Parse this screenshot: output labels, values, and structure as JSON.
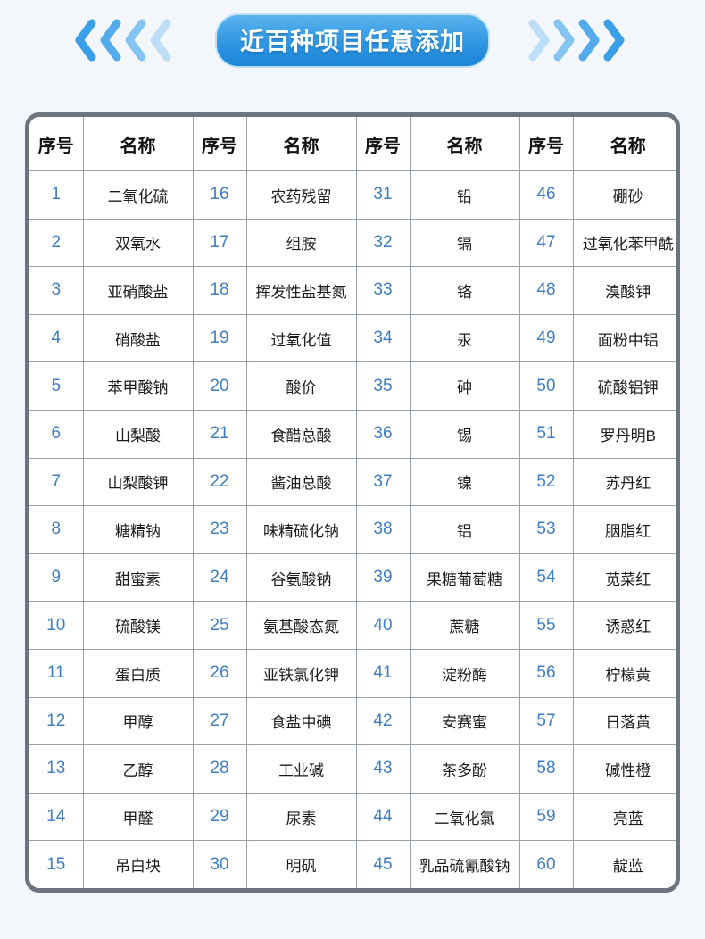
{
  "header": {
    "title": "近百种项目任意添加",
    "left_icon": "chevrons-left-icon",
    "right_icon": "chevrons-right-icon"
  },
  "colors": {
    "page_background": "#f3f7fc",
    "badge_gradient_top": "#5ab3ec",
    "badge_gradient_bottom": "#1a84d7",
    "badge_border": "#bfe0f7",
    "table_outer_border": "#6d7480",
    "grid_line": "#9aa1ab",
    "number_blue": "#3e7dc4",
    "text_dark": "#1c1c1e",
    "chevron_shades_outer_to_inner": [
      "#3b9ee8",
      "#53abec",
      "#86c4f2",
      "#bcdef8"
    ]
  },
  "table": {
    "column_headers": [
      "序号",
      "名称",
      "序号",
      "名称",
      "序号",
      "名称",
      "序号",
      "名称"
    ],
    "groups": [
      {
        "items": [
          {
            "no": "1",
            "name": "二氧化硫"
          },
          {
            "no": "2",
            "name": "双氧水"
          },
          {
            "no": "3",
            "name": "亚硝酸盐"
          },
          {
            "no": "4",
            "name": "硝酸盐"
          },
          {
            "no": "5",
            "name": "苯甲酸钠"
          },
          {
            "no": "6",
            "name": "山梨酸"
          },
          {
            "no": "7",
            "name": "山梨酸钾"
          },
          {
            "no": "8",
            "name": "糖精钠"
          },
          {
            "no": "9",
            "name": "甜蜜素"
          },
          {
            "no": "10",
            "name": "硫酸镁"
          },
          {
            "no": "11",
            "name": "蛋白质"
          },
          {
            "no": "12",
            "name": "甲醇"
          },
          {
            "no": "13",
            "name": "乙醇"
          },
          {
            "no": "14",
            "name": "甲醛"
          },
          {
            "no": "15",
            "name": "吊白块"
          }
        ]
      },
      {
        "items": [
          {
            "no": "16",
            "name": "农药残留"
          },
          {
            "no": "17",
            "name": "组胺"
          },
          {
            "no": "18",
            "name": "挥发性盐基氮"
          },
          {
            "no": "19",
            "name": "过氧化值"
          },
          {
            "no": "20",
            "name": "酸价"
          },
          {
            "no": "21",
            "name": "食醋总酸"
          },
          {
            "no": "22",
            "name": "酱油总酸"
          },
          {
            "no": "23",
            "name": "味精硫化钠"
          },
          {
            "no": "24",
            "name": "谷氨酸钠"
          },
          {
            "no": "25",
            "name": "氨基酸态氮"
          },
          {
            "no": "26",
            "name": "亚铁氯化钾"
          },
          {
            "no": "27",
            "name": "食盐中碘"
          },
          {
            "no": "28",
            "name": "工业碱"
          },
          {
            "no": "29",
            "name": "尿素"
          },
          {
            "no": "30",
            "name": "明矾"
          }
        ]
      },
      {
        "items": [
          {
            "no": "31",
            "name": "铅"
          },
          {
            "no": "32",
            "name": "镉"
          },
          {
            "no": "33",
            "name": "铬"
          },
          {
            "no": "34",
            "name": "汞"
          },
          {
            "no": "35",
            "name": "砷"
          },
          {
            "no": "36",
            "name": "锡"
          },
          {
            "no": "37",
            "name": "镍"
          },
          {
            "no": "38",
            "name": "铝"
          },
          {
            "no": "39",
            "name": "果糖葡萄糖"
          },
          {
            "no": "40",
            "name": "蔗糖"
          },
          {
            "no": "41",
            "name": "淀粉酶"
          },
          {
            "no": "42",
            "name": "安赛蜜"
          },
          {
            "no": "43",
            "name": "茶多酚"
          },
          {
            "no": "44",
            "name": "二氧化氯"
          },
          {
            "no": "45",
            "name": "乳品硫氰酸钠"
          }
        ]
      },
      {
        "items": [
          {
            "no": "46",
            "name": "硼砂"
          },
          {
            "no": "47",
            "name": "过氧化苯甲酰"
          },
          {
            "no": "48",
            "name": "溴酸钾"
          },
          {
            "no": "49",
            "name": "面粉中铝"
          },
          {
            "no": "50",
            "name": "硫酸铝钾"
          },
          {
            "no": "51",
            "name": "罗丹明B"
          },
          {
            "no": "52",
            "name": "苏丹红"
          },
          {
            "no": "53",
            "name": "胭脂红"
          },
          {
            "no": "54",
            "name": "苋菜红"
          },
          {
            "no": "55",
            "name": "诱惑红"
          },
          {
            "no": "56",
            "name": "柠檬黄"
          },
          {
            "no": "57",
            "name": "日落黄"
          },
          {
            "no": "58",
            "name": "碱性橙"
          },
          {
            "no": "59",
            "name": "亮蓝"
          },
          {
            "no": "60",
            "name": "靛蓝"
          }
        ]
      }
    ]
  }
}
